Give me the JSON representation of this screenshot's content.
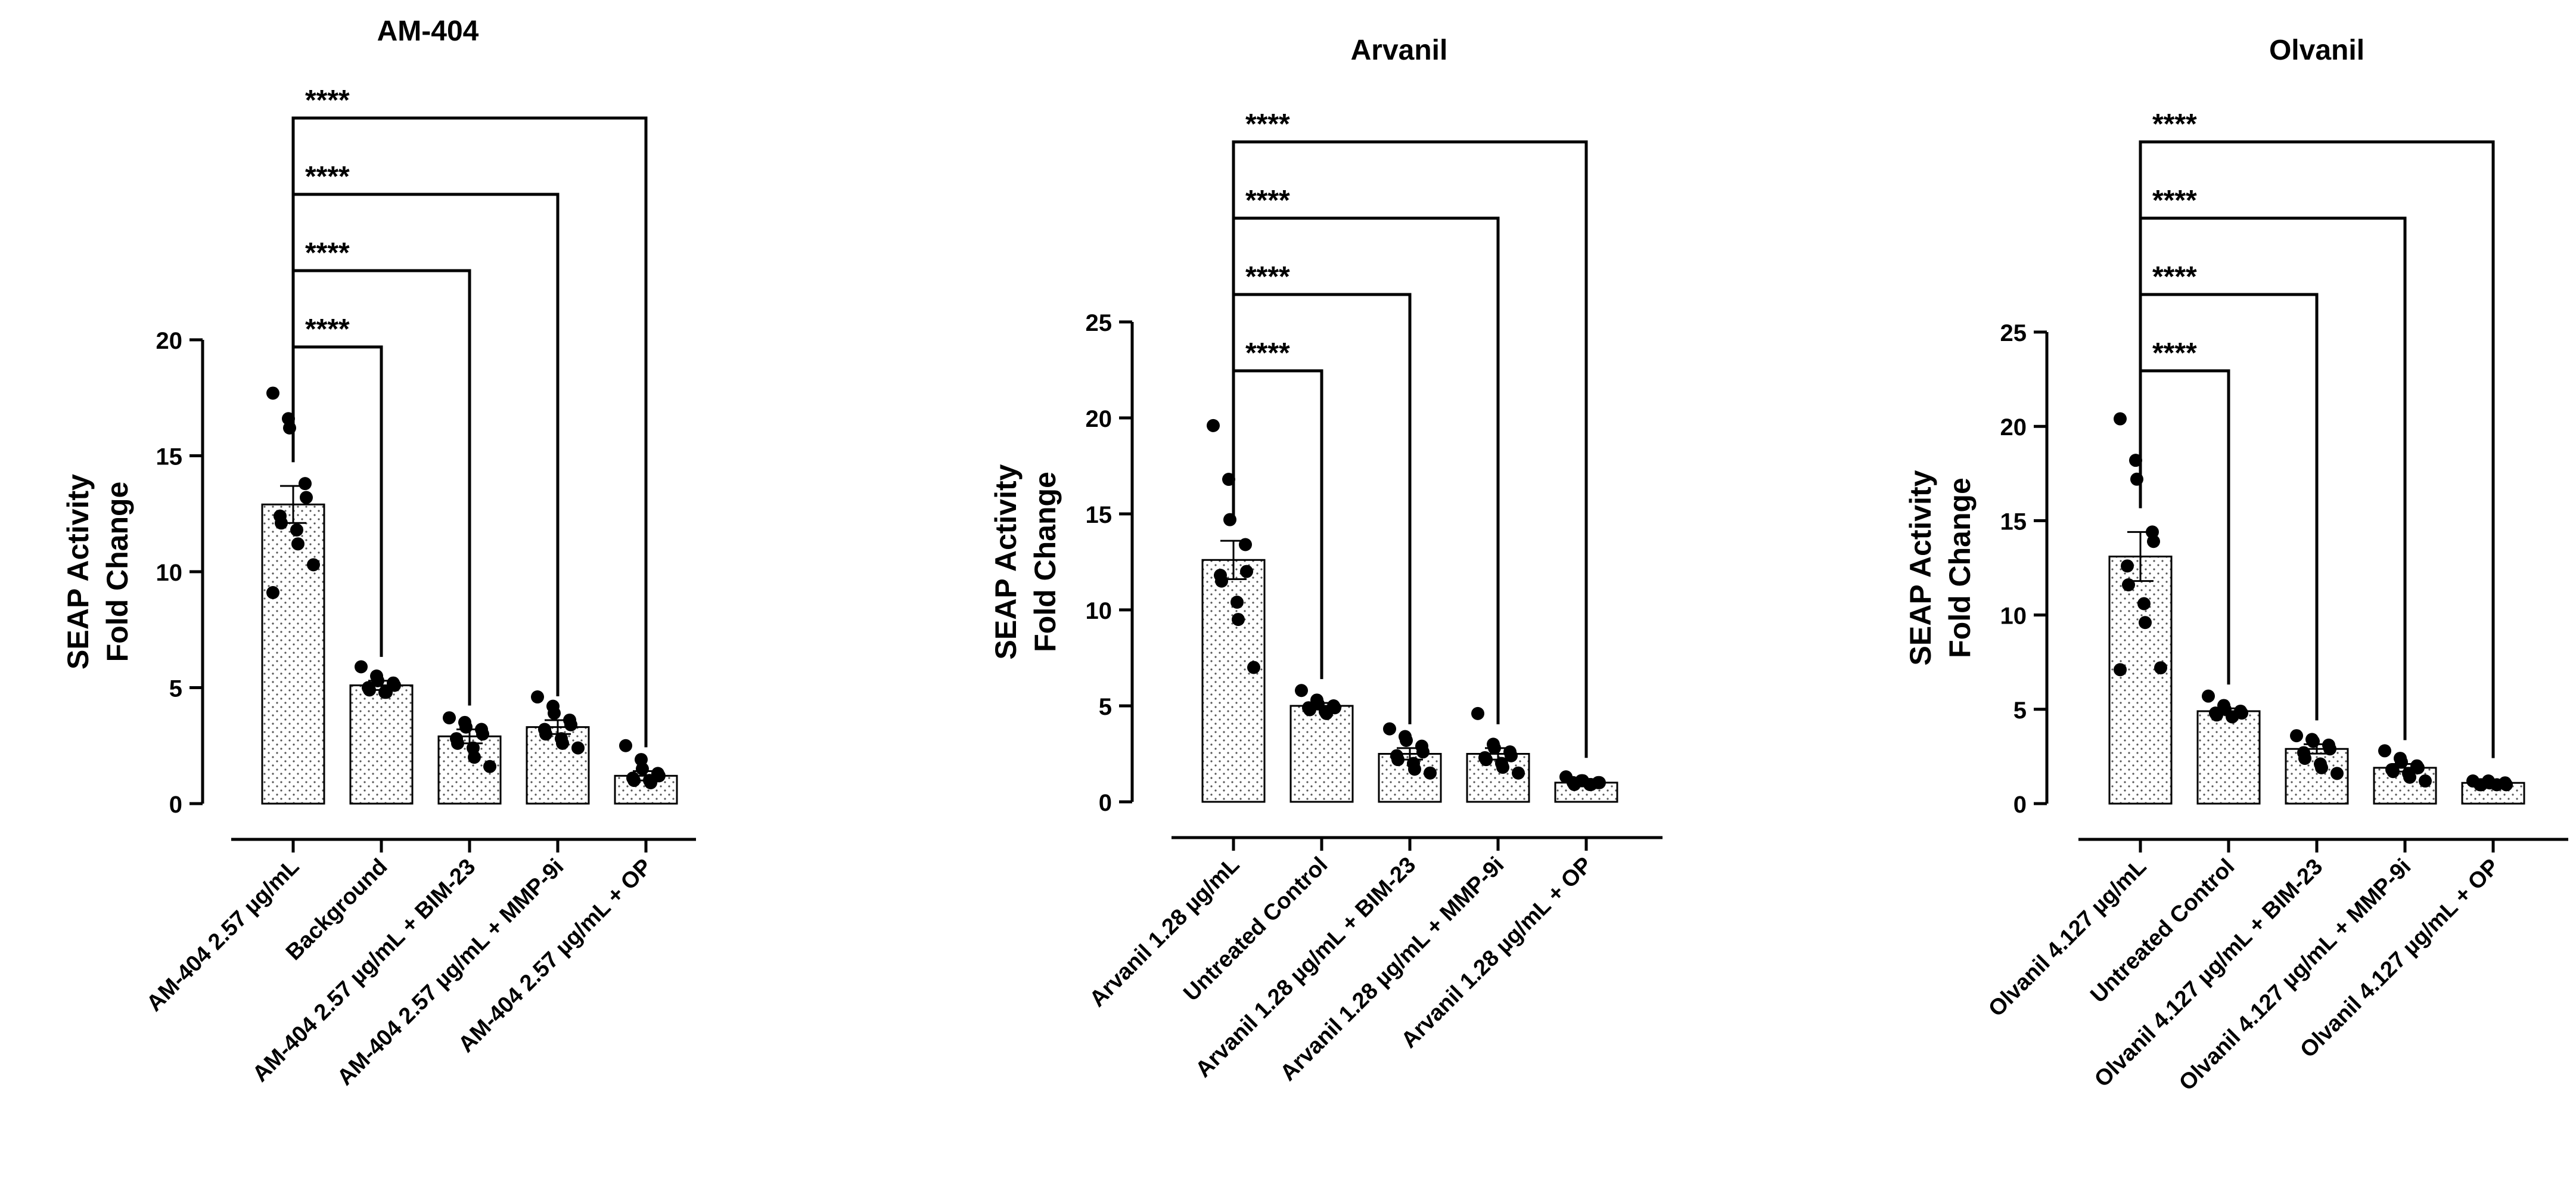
{
  "chart_data": [
    {
      "type": "bar",
      "title": "AM-404",
      "ylabel_lines": [
        "SEAP Activity",
        "Fold Change"
      ],
      "ylim": [
        0,
        20
      ],
      "yticks": [
        0,
        5,
        10,
        15,
        20
      ],
      "categories": [
        "AM-404 2.57 µg/mL",
        "Background",
        "AM-404 2.57 µg/mL + BIM-23",
        "AM-404 2.57 µg/mL + MMP-9i",
        "AM-404 2.57 µg/mL + OP"
      ],
      "values": [
        12.9,
        5.1,
        2.9,
        3.3,
        1.2
      ],
      "errors": [
        0.8,
        0.2,
        0.3,
        0.3,
        0.2
      ],
      "points": [
        [
          17.7,
          16.6,
          16.2,
          13.8,
          13.2,
          12.4,
          12.1,
          11.8,
          11.2,
          10.3,
          9.1
        ],
        [
          5.9,
          5.5,
          5.3,
          5.2,
          5.1,
          5.0,
          4.9,
          4.8,
          4.8
        ],
        [
          3.7,
          3.5,
          3.3,
          3.2,
          3.0,
          2.8,
          2.6,
          2.4,
          2.0,
          1.6
        ],
        [
          4.6,
          4.2,
          3.9,
          3.6,
          3.4,
          3.2,
          3.0,
          2.8,
          2.6,
          2.4
        ],
        [
          2.5,
          1.9,
          1.5,
          1.3,
          1.2,
          1.1,
          1.0,
          1.0,
          0.9
        ]
      ],
      "comparisons": [
        {
          "from": 0,
          "to": 1,
          "label": "****"
        },
        {
          "from": 0,
          "to": 2,
          "label": "****"
        },
        {
          "from": 0,
          "to": 3,
          "label": "****"
        },
        {
          "from": 0,
          "to": 4,
          "label": "****"
        }
      ]
    },
    {
      "type": "bar",
      "title": "Arvanil",
      "ylabel_lines": [
        "SEAP Activity",
        "Fold Change"
      ],
      "ylim": [
        0,
        25
      ],
      "yticks": [
        0,
        5,
        10,
        15,
        20,
        25
      ],
      "categories": [
        "Arvanil 1.28 µg/mL",
        "Untreated Control",
        "Arvanil 1.28 µg/mL + BIM-23",
        "Arvanil 1.28 µg/mL + MMP-9i",
        "Arvanil 1.28 µg/mL + OP"
      ],
      "values": [
        12.6,
        5.0,
        2.5,
        2.5,
        1.0
      ],
      "errors": [
        1.0,
        0.15,
        0.3,
        0.3,
        0.05
      ],
      "points": [
        [
          19.6,
          16.8,
          14.7,
          13.4,
          12.0,
          11.8,
          11.5,
          10.4,
          9.5,
          7.0
        ],
        [
          5.8,
          5.3,
          5.1,
          5.0,
          4.9,
          4.9,
          4.8,
          4.7,
          4.6
        ],
        [
          3.8,
          3.4,
          3.2,
          2.9,
          2.6,
          2.4,
          2.2,
          2.0,
          1.7,
          1.5
        ],
        [
          4.6,
          3.0,
          2.8,
          2.6,
          2.4,
          2.3,
          2.2,
          2.0,
          1.8,
          1.5
        ],
        [
          1.3,
          1.1,
          1.1,
          1.0,
          1.0,
          1.0,
          0.9,
          0.9,
          0.9
        ]
      ],
      "comparisons": [
        {
          "from": 0,
          "to": 1,
          "label": "****"
        },
        {
          "from": 0,
          "to": 2,
          "label": "****"
        },
        {
          "from": 0,
          "to": 3,
          "label": "****"
        },
        {
          "from": 0,
          "to": 4,
          "label": "****"
        }
      ]
    },
    {
      "type": "bar",
      "title": "Olvanil",
      "ylabel_lines": [
        "SEAP Activity",
        "Fold Change"
      ],
      "ylim": [
        0,
        25
      ],
      "yticks": [
        0,
        5,
        10,
        15,
        20,
        25
      ],
      "categories": [
        "Olvanil 4.127 µg/mL",
        "Untreated Control",
        "Olvanil 4.127 µg/mL + BIM-23",
        "Olvanil 4.127 µg/mL + MMP-9i",
        "Olvanil 4.127 µg/mL + OP"
      ],
      "values": [
        13.1,
        4.9,
        2.9,
        1.9,
        1.1
      ],
      "errors": [
        1.3,
        0.15,
        0.25,
        0.2,
        0.05
      ],
      "points": [
        [
          20.4,
          18.2,
          17.2,
          14.4,
          13.9,
          12.6,
          11.6,
          10.6,
          9.6,
          7.2,
          7.1
        ],
        [
          5.7,
          5.2,
          5.0,
          4.9,
          4.8,
          4.8,
          4.7,
          4.6
        ],
        [
          3.6,
          3.4,
          3.3,
          3.1,
          2.9,
          2.7,
          2.4,
          2.1,
          1.9,
          1.6
        ],
        [
          2.8,
          2.4,
          2.2,
          2.0,
          1.9,
          1.8,
          1.7,
          1.6,
          1.4,
          1.2
        ],
        [
          1.2,
          1.2,
          1.1,
          1.1,
          1.0,
          1.0,
          1.0,
          1.0
        ]
      ],
      "comparisons": [
        {
          "from": 0,
          "to": 1,
          "label": "****"
        },
        {
          "from": 0,
          "to": 2,
          "label": "****"
        },
        {
          "from": 0,
          "to": 3,
          "label": "****"
        },
        {
          "from": 0,
          "to": 4,
          "label": "****"
        }
      ]
    }
  ]
}
